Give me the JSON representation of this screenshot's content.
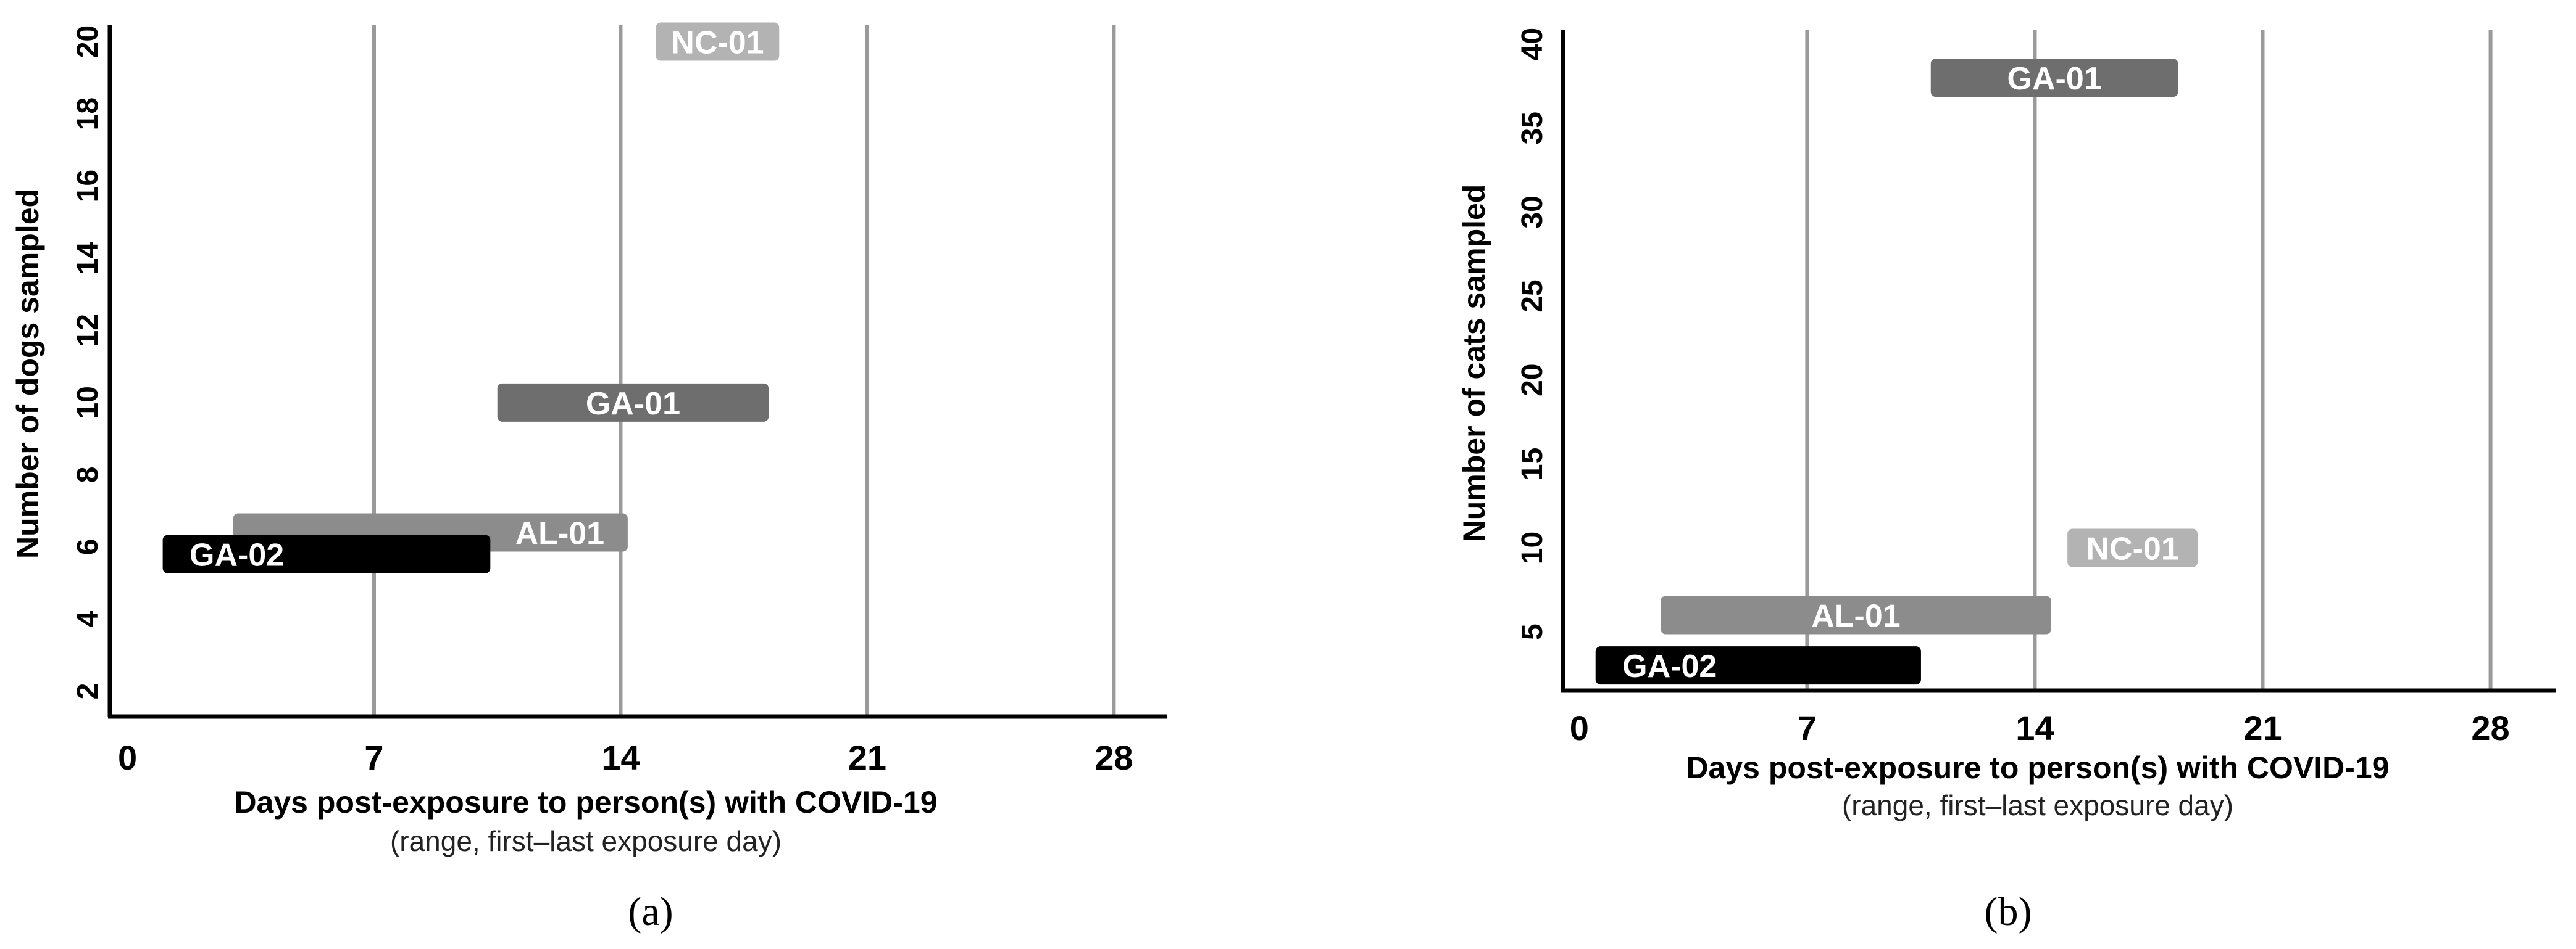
{
  "chart_data": [
    {
      "type": "bar",
      "orientation": "horizontal-range",
      "panel_label": "(a)",
      "ylabel": "Number of dogs sampled",
      "xlabel": "Days post-exposure to person(s) with COVID-19",
      "xlabel_sub": "(range, first–last exposure day)",
      "xticks": [
        0,
        7,
        14,
        21,
        28
      ],
      "yticks": [
        2,
        4,
        6,
        8,
        10,
        12,
        14,
        16,
        18,
        20
      ],
      "xlim": [
        -0.5,
        29.5
      ],
      "ylim": [
        1.3,
        20.3
      ],
      "grid_x": [
        7,
        14,
        21,
        28
      ],
      "bars": [
        {
          "label": "NC-01",
          "start": 15,
          "end": 18.5,
          "y": 20,
          "color": "#b3b3b3"
        },
        {
          "label": "GA-01",
          "start": 10.5,
          "end": 18.2,
          "y": 10,
          "color": "#6e6e6e"
        },
        {
          "label": "AL-01",
          "start": 3,
          "end": 14.2,
          "y": 6.4,
          "color": "#8c8c8c"
        },
        {
          "label": "GA-02",
          "start": 1,
          "end": 10.3,
          "y": 5.8,
          "color": "#000000"
        }
      ]
    },
    {
      "type": "bar",
      "orientation": "horizontal-range",
      "panel_label": "(b)",
      "ylabel": "Number of cats sampled",
      "xlabel": "Days post-exposure to person(s) with COVID-19",
      "xlabel_sub": "(range, first–last exposure day)",
      "xticks": [
        0,
        7,
        14,
        21,
        28
      ],
      "yticks": [
        5,
        10,
        15,
        20,
        25,
        30,
        35,
        40
      ],
      "xlim": [
        -0.5,
        30
      ],
      "ylim": [
        1.5,
        40.5
      ],
      "grid_x": [
        7,
        14,
        21,
        28
      ],
      "bars": [
        {
          "label": "GA-01",
          "start": 10.8,
          "end": 18.4,
          "y": 38,
          "color": "#6e6e6e"
        },
        {
          "label": "NC-01",
          "start": 15,
          "end": 19,
          "y": 10,
          "color": "#b3b3b3"
        },
        {
          "label": "AL-01",
          "start": 2.5,
          "end": 14.5,
          "y": 6,
          "color": "#8c8c8c"
        },
        {
          "label": "GA-02",
          "start": 0.5,
          "end": 10.5,
          "y": 3,
          "color": "#000000"
        }
      ]
    }
  ]
}
